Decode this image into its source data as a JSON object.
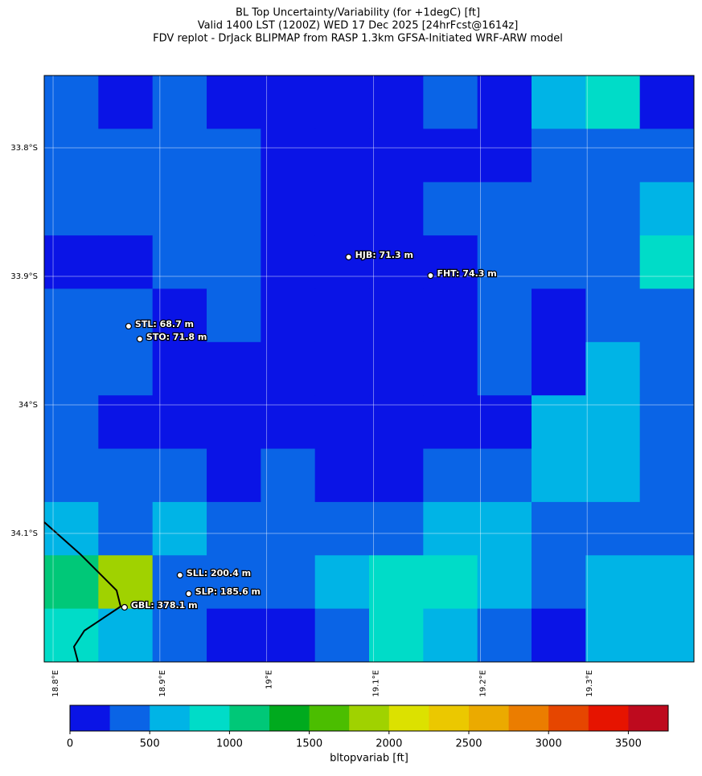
{
  "chart_data": {
    "type": "heatmap",
    "title": [
      "BL Top Uncertainty/Variability (for +1degC) [ft]",
      "Valid 1400 LST (1200Z) WED 17 Dec 2025 [24hrFcst@1614z]",
      "FDV replot - DrJack BLIPMAP from RASP 1.3km GFSA-Initiated WRF-ARW model"
    ],
    "xlim": [
      18.7917,
      19.4
    ],
    "ylim": [
      -34.2,
      -33.74375
    ],
    "xticks": [
      {
        "value": 18.8,
        "label": "18.8°E"
      },
      {
        "value": 18.9,
        "label": "18.9°E"
      },
      {
        "value": 19.0,
        "label": "19°E"
      },
      {
        "value": 19.1,
        "label": "19.1°E"
      },
      {
        "value": 19.2,
        "label": "19.2°E"
      },
      {
        "value": 19.3,
        "label": "19.3°E"
      }
    ],
    "yticks": [
      {
        "value": -33.8,
        "label": "33.8°S"
      },
      {
        "value": -33.9,
        "label": "33.9°S"
      },
      {
        "value": -34.0,
        "label": "34°S"
      },
      {
        "value": -34.1,
        "label": "34.1°S"
      }
    ],
    "grid": true,
    "z": [
      [
        300,
        200,
        300,
        150,
        150,
        100,
        150,
        300,
        200,
        600,
        800,
        200
      ],
      [
        350,
        300,
        350,
        300,
        150,
        100,
        200,
        200,
        150,
        300,
        300,
        300
      ],
      [
        300,
        350,
        300,
        300,
        150,
        200,
        200,
        250,
        350,
        300,
        400,
        550
      ],
      [
        200,
        200,
        300,
        300,
        150,
        150,
        150,
        200,
        350,
        350,
        400,
        800
      ],
      [
        300,
        250,
        200,
        250,
        150,
        150,
        150,
        200,
        300,
        200,
        250,
        300
      ],
      [
        350,
        300,
        200,
        150,
        100,
        100,
        100,
        150,
        300,
        200,
        600,
        300
      ],
      [
        300,
        200,
        200,
        150,
        100,
        150,
        100,
        150,
        200,
        550,
        700,
        350
      ],
      [
        300,
        250,
        300,
        200,
        300,
        150,
        200,
        300,
        300,
        600,
        600,
        350
      ],
      [
        700,
        300,
        500,
        300,
        400,
        300,
        300,
        500,
        700,
        400,
        300,
        300
      ],
      [
        1100,
        1800,
        400,
        300,
        350,
        500,
        900,
        800,
        500,
        400,
        600,
        600
      ],
      [
        900,
        600,
        300,
        200,
        200,
        350,
        800,
        700,
        300,
        200,
        500,
        700
      ]
    ],
    "stations": [
      {
        "label": "HJB: 71.3 m",
        "lon": 19.0767,
        "lat": -33.885
      },
      {
        "label": "FHT: 74.3 m",
        "lon": 19.1534,
        "lat": -33.8994
      },
      {
        "label": "STL: 68.7 m",
        "lon": 18.8707,
        "lat": -33.9388
      },
      {
        "label": "STO: 71.8 m",
        "lon": 18.8812,
        "lat": -33.9488
      },
      {
        "label": "SLL: 200.4 m",
        "lon": 18.9188,
        "lat": -34.1325
      },
      {
        "label": "SLP: 185.6 m",
        "lon": 18.927,
        "lat": -34.1469
      },
      {
        "label": "GBL: 378.1 m",
        "lon": 18.8669,
        "lat": -34.1575
      }
    ],
    "colorbar": {
      "label": "bltopvariab [ft]",
      "lim": [
        0,
        3750
      ],
      "ticks": [
        0,
        500,
        1000,
        1500,
        2000,
        2500,
        3000,
        3500
      ],
      "colors": [
        "#0a14e6",
        "#0a64e6",
        "#00b4e6",
        "#00dcc8",
        "#00c878",
        "#00aa1e",
        "#4bbe00",
        "#a0d200",
        "#dce100",
        "#ebc800",
        "#ebaa00",
        "#eb7d00",
        "#e64600",
        "#e61400",
        "#be0a1e"
      ]
    }
  }
}
